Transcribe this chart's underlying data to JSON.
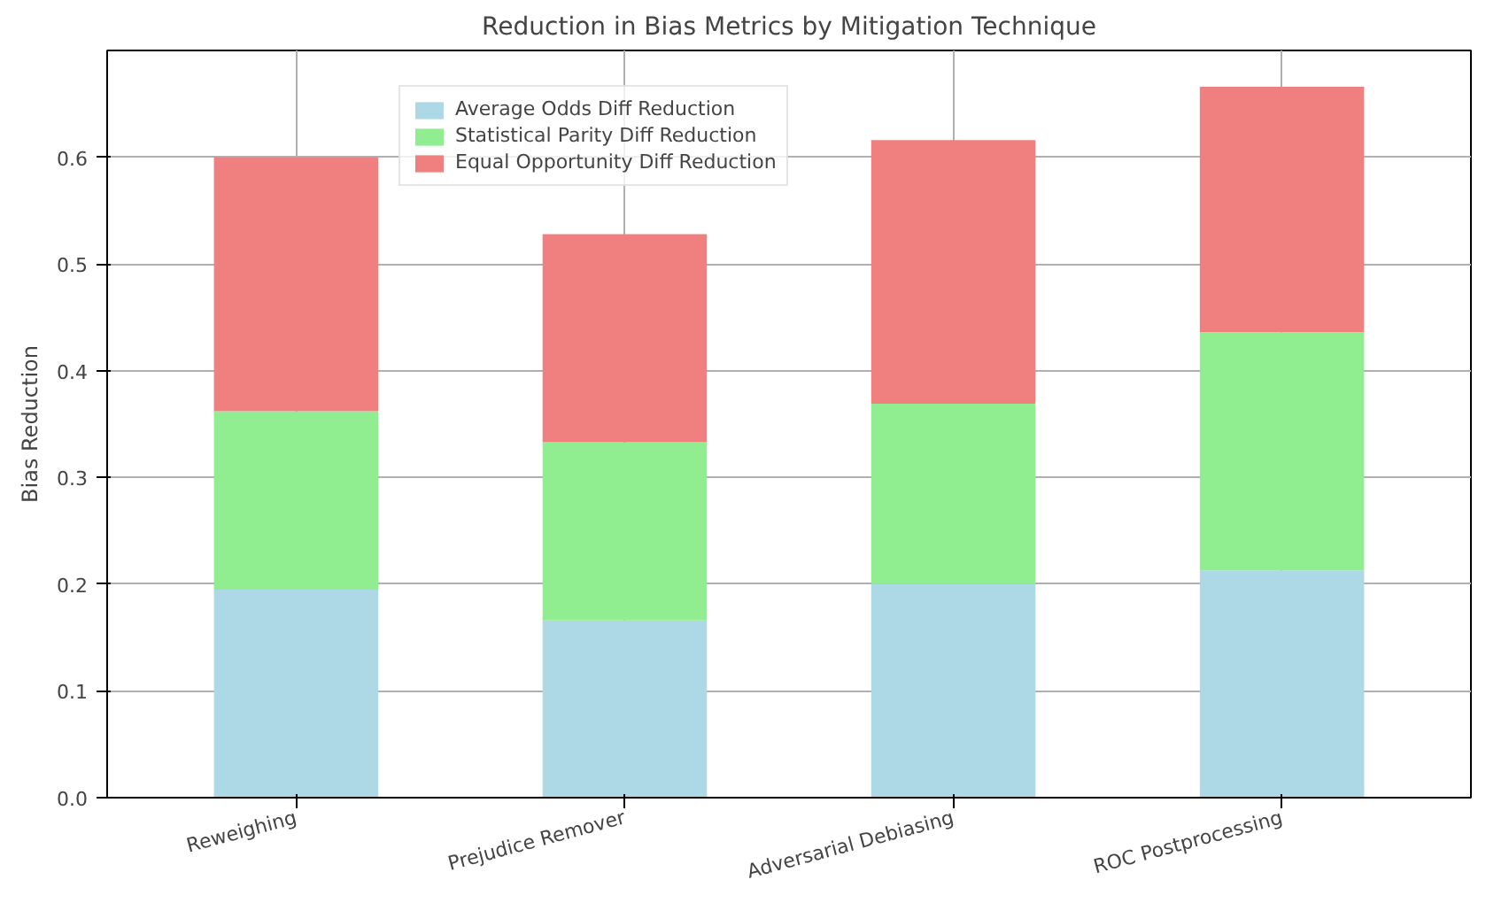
{
  "chart_data": {
    "type": "bar",
    "title": "Reduction in Bias Metrics by Mitigation Technique",
    "ylabel": "Bias Reduction",
    "categories": [
      "Reweighing",
      "Prejudice Remover",
      "Adversarial Debiasing",
      "ROC Postprocessing"
    ],
    "stacked": true,
    "series": [
      {
        "name": "Average Odds Diff Reduction",
        "color": "#add8e6",
        "values": [
          0.195,
          0.166,
          0.2,
          0.213
        ]
      },
      {
        "name": "Statistical Parity Diff Reduction",
        "color": "#90ee90",
        "values": [
          0.167,
          0.167,
          0.169,
          0.223
        ]
      },
      {
        "name": "Equal Opportunity Diff Reduction",
        "color": "#f08080",
        "values": [
          0.238,
          0.195,
          0.247,
          0.23
        ]
      }
    ],
    "ylim": [
      0,
      0.7
    ],
    "yticks": [
      {
        "value": 0,
        "label": "0.0"
      },
      0.1,
      0.2,
      0.3,
      0.4,
      0.5,
      0.6
    ],
    "grid": true,
    "legend": "top left"
  }
}
